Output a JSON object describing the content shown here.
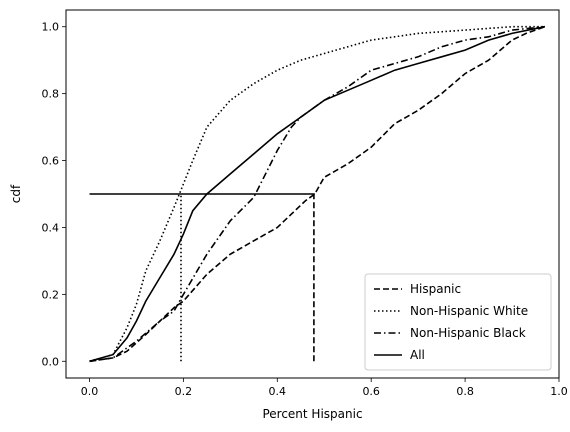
{
  "chart_data": {
    "type": "line",
    "title": "",
    "xlabel": "Percent Hispanic",
    "ylabel": "cdf",
    "xlim": [
      -0.05,
      1.0
    ],
    "ylim": [
      -0.05,
      1.05
    ],
    "xticks": [
      "0.0",
      "0.2",
      "0.4",
      "0.6",
      "0.8",
      "1.0"
    ],
    "yticks": [
      "0.0",
      "0.2",
      "0.4",
      "0.6",
      "0.8",
      "1.0"
    ],
    "grid": false,
    "legend_position": "lower-right",
    "series": [
      {
        "name": "Hispanic",
        "style": "dashed",
        "color": "#000000",
        "x": [
          0.0,
          0.05,
          0.08,
          0.12,
          0.15,
          0.18,
          0.2,
          0.25,
          0.3,
          0.35,
          0.4,
          0.43,
          0.46,
          0.48,
          0.5,
          0.55,
          0.6,
          0.65,
          0.7,
          0.75,
          0.8,
          0.85,
          0.9,
          0.93,
          0.97
        ],
        "y": [
          0.0,
          0.01,
          0.03,
          0.08,
          0.12,
          0.16,
          0.18,
          0.26,
          0.32,
          0.36,
          0.4,
          0.44,
          0.48,
          0.5,
          0.55,
          0.59,
          0.64,
          0.71,
          0.75,
          0.8,
          0.86,
          0.9,
          0.96,
          0.98,
          1.0
        ]
      },
      {
        "name": "Non-Hispanic White",
        "style": "dotted",
        "color": "#000000",
        "x": [
          0.0,
          0.05,
          0.08,
          0.1,
          0.12,
          0.15,
          0.18,
          0.2,
          0.22,
          0.25,
          0.3,
          0.35,
          0.4,
          0.45,
          0.5,
          0.55,
          0.6,
          0.65,
          0.7,
          0.8,
          0.9,
          0.97
        ],
        "y": [
          0.0,
          0.02,
          0.1,
          0.17,
          0.27,
          0.36,
          0.46,
          0.53,
          0.6,
          0.7,
          0.78,
          0.83,
          0.87,
          0.9,
          0.92,
          0.94,
          0.96,
          0.97,
          0.98,
          0.99,
          1.0,
          1.0
        ]
      },
      {
        "name": "Non-Hispanic Black",
        "style": "dashdot",
        "color": "#000000",
        "x": [
          0.0,
          0.05,
          0.08,
          0.1,
          0.15,
          0.18,
          0.2,
          0.25,
          0.3,
          0.35,
          0.4,
          0.43,
          0.45,
          0.5,
          0.55,
          0.6,
          0.65,
          0.7,
          0.75,
          0.8,
          0.85,
          0.9,
          0.97
        ],
        "y": [
          0.0,
          0.01,
          0.04,
          0.06,
          0.12,
          0.15,
          0.2,
          0.32,
          0.42,
          0.49,
          0.63,
          0.7,
          0.73,
          0.78,
          0.82,
          0.87,
          0.89,
          0.91,
          0.94,
          0.96,
          0.97,
          0.99,
          1.0
        ]
      },
      {
        "name": "All",
        "style": "solid",
        "color": "#000000",
        "x": [
          0.0,
          0.05,
          0.08,
          0.1,
          0.12,
          0.15,
          0.18,
          0.2,
          0.22,
          0.25,
          0.3,
          0.35,
          0.4,
          0.45,
          0.5,
          0.55,
          0.6,
          0.65,
          0.7,
          0.75,
          0.8,
          0.85,
          0.9,
          0.97
        ],
        "y": [
          0.0,
          0.02,
          0.07,
          0.12,
          0.18,
          0.25,
          0.32,
          0.38,
          0.45,
          0.5,
          0.56,
          0.62,
          0.68,
          0.73,
          0.78,
          0.81,
          0.84,
          0.87,
          0.89,
          0.91,
          0.93,
          0.96,
          0.98,
          1.0
        ]
      },
      {
        "name": "",
        "style": "solid",
        "color": "#000000",
        "x": [
          0.0,
          0.48
        ],
        "y": [
          0.5,
          0.5
        ]
      },
      {
        "name": "",
        "style": "dotted",
        "color": "#000000",
        "x": [
          0.195,
          0.195
        ],
        "y": [
          0.0,
          0.5
        ]
      },
      {
        "name": "",
        "style": "dashed",
        "color": "#000000",
        "x": [
          0.478,
          0.478
        ],
        "y": [
          0.0,
          0.5
        ]
      }
    ]
  }
}
